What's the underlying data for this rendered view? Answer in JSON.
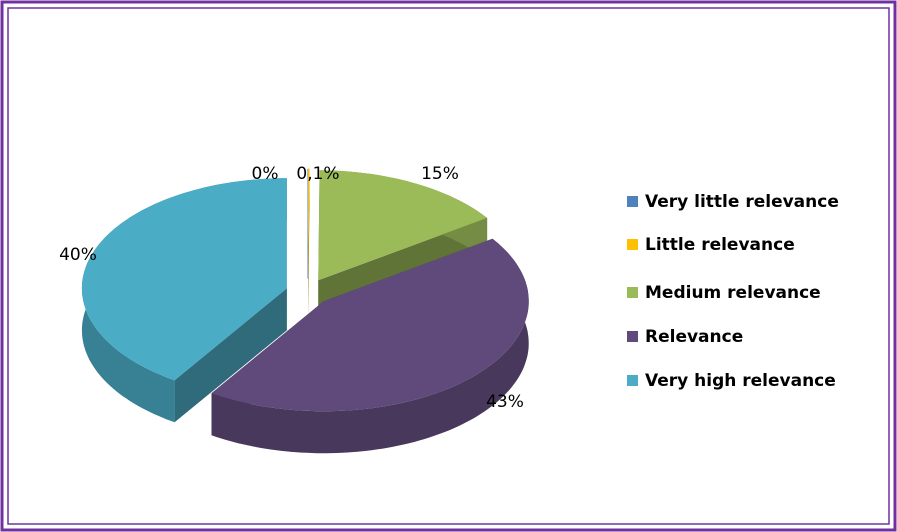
{
  "chart_data": {
    "type": "pie3d",
    "categories": [
      "Very little relevance",
      "Little relevance",
      "Medium relevance",
      "Relevance",
      "Very high relevance"
    ],
    "values": [
      0,
      0.1,
      15,
      43,
      40
    ],
    "value_labels": [
      "0%",
      "0,1%",
      "15%",
      "43%",
      "40%"
    ],
    "colors": [
      "#4f81bd",
      "#ffc000",
      "#9bbb59",
      "#604a7b",
      "#4bacc6"
    ],
    "legend": "right"
  }
}
